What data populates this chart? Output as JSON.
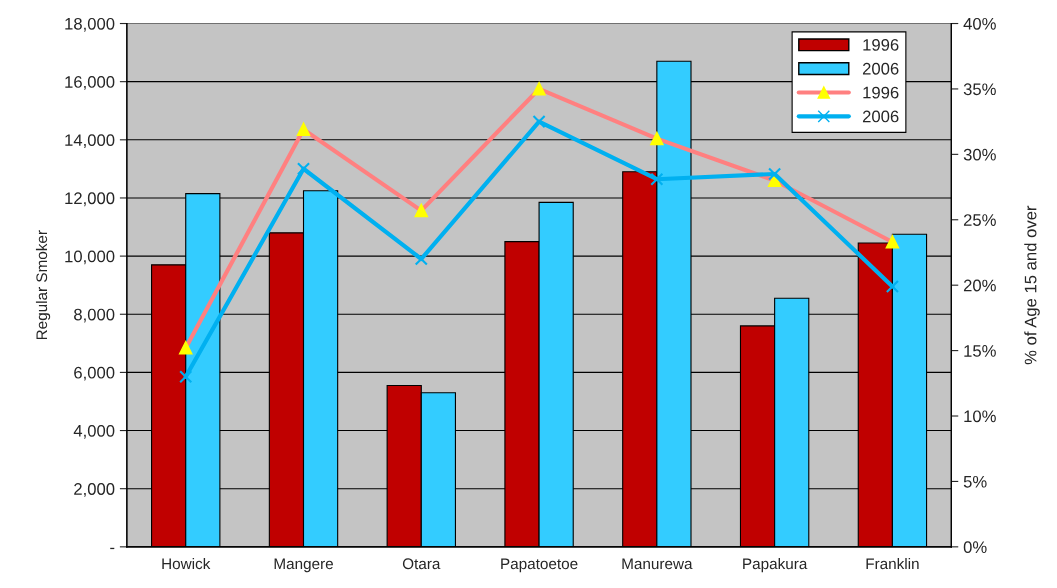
{
  "chart_data": {
    "type": "bar",
    "ylabel": "Regular Smoker",
    "y2label": "% of Age 15 and over",
    "categories": [
      "Howick",
      "Mangere",
      "Otara",
      "Papatoetoe",
      "Manurewa",
      "Papakura",
      "Franklin"
    ],
    "series": [
      {
        "name": "1996",
        "color": "#c00000",
        "values": [
          9700,
          10800,
          5550,
          10500,
          12900,
          7600,
          10450
        ]
      },
      {
        "name": "2006",
        "color": "#33ccff",
        "values": [
          12150,
          12250,
          5300,
          11850,
          16700,
          8550,
          10750
        ]
      },
      {
        "name": "1996",
        "type": "line",
        "axis": "y2",
        "color": "#ff8080",
        "marker": "triangle",
        "values": [
          15.2,
          31.9,
          25.7,
          35.0,
          31.2,
          28.0,
          23.3
        ]
      },
      {
        "name": "2006",
        "type": "line",
        "axis": "y2",
        "color": "#00b0f0",
        "marker": "cross",
        "values": [
          13.0,
          28.9,
          22.0,
          32.5,
          28.1,
          28.5,
          19.9
        ]
      }
    ],
    "ylim": [
      0,
      18000
    ],
    "yticks": [
      {
        "value": 0,
        "label": "-"
      },
      {
        "value": 2000,
        "label": "2,000"
      },
      {
        "value": 4000,
        "label": "4,000"
      },
      {
        "value": 6000,
        "label": "6,000"
      },
      {
        "value": 8000,
        "label": "8,000"
      },
      {
        "value": 10000,
        "label": "10,000"
      },
      {
        "value": 12000,
        "label": "12,000"
      },
      {
        "value": 14000,
        "label": "14,000"
      },
      {
        "value": 16000,
        "label": "16,000"
      },
      {
        "value": 18000,
        "label": "18,000"
      }
    ],
    "y2lim": [
      0,
      40
    ],
    "y2ticks": [
      {
        "value": 0,
        "label": "0%"
      },
      {
        "value": 5,
        "label": "5%"
      },
      {
        "value": 10,
        "label": "10%"
      },
      {
        "value": 15,
        "label": "15%"
      },
      {
        "value": 20,
        "label": "20%"
      },
      {
        "value": 25,
        "label": "25%"
      },
      {
        "value": 30,
        "label": "30%"
      },
      {
        "value": 35,
        "label": "35%"
      },
      {
        "value": 40,
        "label": "40%"
      }
    ],
    "grid": "y",
    "legend": "top right"
  }
}
